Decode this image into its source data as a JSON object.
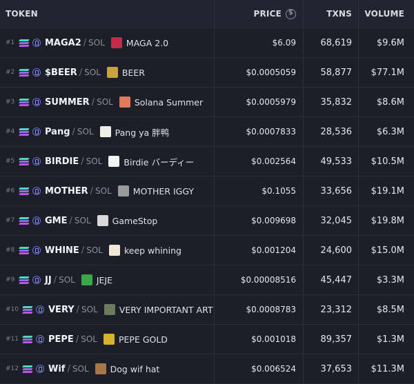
{
  "headers": {
    "token": "TOKEN",
    "price": "PRICE",
    "txns": "TXNS",
    "volume": "VOLUME"
  },
  "rows": [
    {
      "rank": "#1",
      "symbol": "MAGA2",
      "quote": "SOL",
      "name": "MAGA 2.0",
      "price": "$6.09",
      "txns": "68,619",
      "volume": "$9.6M",
      "thumb": "#c8284a"
    },
    {
      "rank": "#2",
      "symbol": "$BEER",
      "quote": "SOL",
      "name": "BEER",
      "price": "$0.0005059",
      "txns": "58,877",
      "volume": "$77.1M",
      "thumb": "#c9a23a"
    },
    {
      "rank": "#3",
      "symbol": "SUMMER",
      "quote": "SOL",
      "name": "Solana Summer",
      "price": "$0.0005979",
      "txns": "35,832",
      "volume": "$8.6M",
      "thumb": "#e07a5a"
    },
    {
      "rank": "#4",
      "symbol": "Pang",
      "quote": "SOL",
      "name": "Pang ya 胖鸭",
      "price": "$0.0007833",
      "txns": "28,536",
      "volume": "$6.3M",
      "thumb": "#f0f0e8"
    },
    {
      "rank": "#5",
      "symbol": "BIRDIE",
      "quote": "SOL",
      "name": "Birdie バーディー",
      "price": "$0.002564",
      "txns": "49,533",
      "volume": "$10.5M",
      "thumb": "#f4f4f4"
    },
    {
      "rank": "#6",
      "symbol": "MOTHER",
      "quote": "SOL",
      "name": "MOTHER IGGY",
      "price": "$0.1055",
      "txns": "33,656",
      "volume": "$19.1M",
      "thumb": "#9a9a9a"
    },
    {
      "rank": "#7",
      "symbol": "GME",
      "quote": "SOL",
      "name": "GameStop",
      "price": "$0.009698",
      "txns": "32,045",
      "volume": "$19.8M",
      "thumb": "#d9d9d9"
    },
    {
      "rank": "#8",
      "symbol": "WHINE",
      "quote": "SOL",
      "name": "keep whining",
      "price": "$0.001204",
      "txns": "24,600",
      "volume": "$15.0M",
      "thumb": "#f2e6d8"
    },
    {
      "rank": "#9",
      "symbol": "JJ",
      "quote": "SOL",
      "name": "JEJE",
      "price": "$0.00008516",
      "txns": "45,447",
      "volume": "$3.3M",
      "thumb": "#3aa84a"
    },
    {
      "rank": "#10",
      "symbol": "VERY",
      "quote": "SOL",
      "name": "VERY IMPORTANT ART",
      "price": "$0.0008783",
      "txns": "23,312",
      "volume": "$8.5M",
      "thumb": "#6b7a5a"
    },
    {
      "rank": "#11",
      "symbol": "PEPE",
      "quote": "SOL",
      "name": "PEPE GOLD",
      "price": "$0.001018",
      "txns": "89,357",
      "volume": "$1.3M",
      "thumb": "#d8b42a"
    },
    {
      "rank": "#12",
      "symbol": "Wif",
      "quote": "SOL",
      "name": "Dog wif hat",
      "price": "$0.006524",
      "txns": "37,653",
      "volume": "$11.3M",
      "thumb": "#a9764a"
    }
  ]
}
